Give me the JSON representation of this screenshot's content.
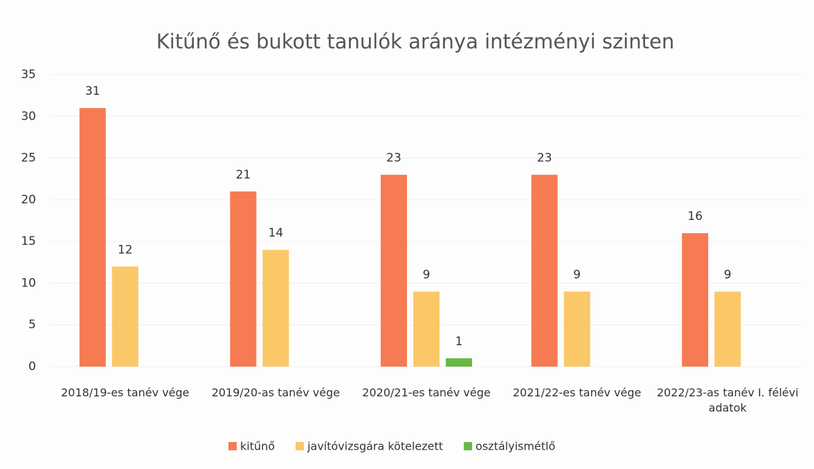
{
  "chart_data": {
    "type": "bar",
    "title": "Kitűnő és bukott tanulók aránya intézményi szinten",
    "categories": [
      "2018/19-es tanév vége",
      "2019/20-as tanév vége",
      "2020/21-es tanév vége",
      "2021/22-es tanév vége",
      "2022/23-as tanév I. félévi adatok"
    ],
    "series": [
      {
        "name": "kitűnő",
        "color": "#f77b52",
        "values": [
          31,
          21,
          23,
          23,
          16
        ]
      },
      {
        "name": "javítóvizsgára kötelezett",
        "color": "#fbc868",
        "values": [
          12,
          14,
          9,
          9,
          9
        ]
      },
      {
        "name": "osztályismétlő",
        "color": "#68b847",
        "values": [
          null,
          null,
          1,
          null,
          null
        ]
      }
    ],
    "ylim": [
      0,
      35
    ],
    "yticks": [
      0,
      5,
      10,
      15,
      20,
      25,
      30,
      35
    ],
    "grid": true,
    "legend": "bottom"
  }
}
